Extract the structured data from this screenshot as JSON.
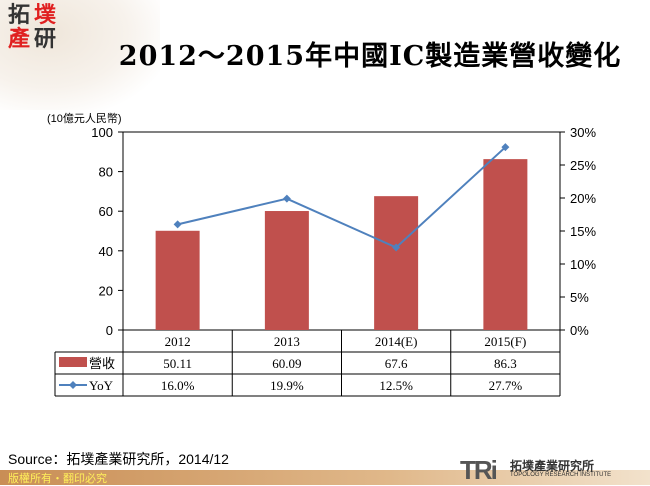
{
  "logo": {
    "chars": [
      "拓",
      "墣",
      "產",
      "研"
    ]
  },
  "title": "2012～2015年中國IC製造業營收變化",
  "chart_data": {
    "type": "bar+line",
    "title": "2012～2015年中國IC製造業營收變化",
    "ylabel": "(10億元人民幣)",
    "ylim": [
      0,
      100
    ],
    "y2lim": [
      0,
      30
    ],
    "yticks": [
      "0",
      "20",
      "40",
      "60",
      "80",
      "100"
    ],
    "y2ticks": [
      "0%",
      "5%",
      "10%",
      "15%",
      "20%",
      "25%",
      "30%"
    ],
    "categories": [
      "2012",
      "2013",
      "2014(E)",
      "2015(F)"
    ],
    "series": [
      {
        "name": "營收",
        "type": "bar",
        "color": "#c0504d",
        "values": [
          50.11,
          60.09,
          67.6,
          86.3
        ],
        "labels": [
          "50.11",
          "60.09",
          "67.6",
          "86.3"
        ]
      },
      {
        "name": "YoY",
        "type": "line",
        "color": "#4f81bd",
        "values": [
          16.0,
          19.9,
          12.5,
          27.7
        ],
        "labels": [
          "16.0%",
          "19.9%",
          "12.5%",
          "27.7%"
        ]
      }
    ]
  },
  "source": "Source：拓墣產業研究所，2014/12",
  "footer": {
    "copyright": "版權所有・翻印必究",
    "brand": "TRi",
    "brand_cn": "拓墣產業研究所",
    "brand_en": "TOPOLOGY RESEARCH INSTITUTE"
  }
}
